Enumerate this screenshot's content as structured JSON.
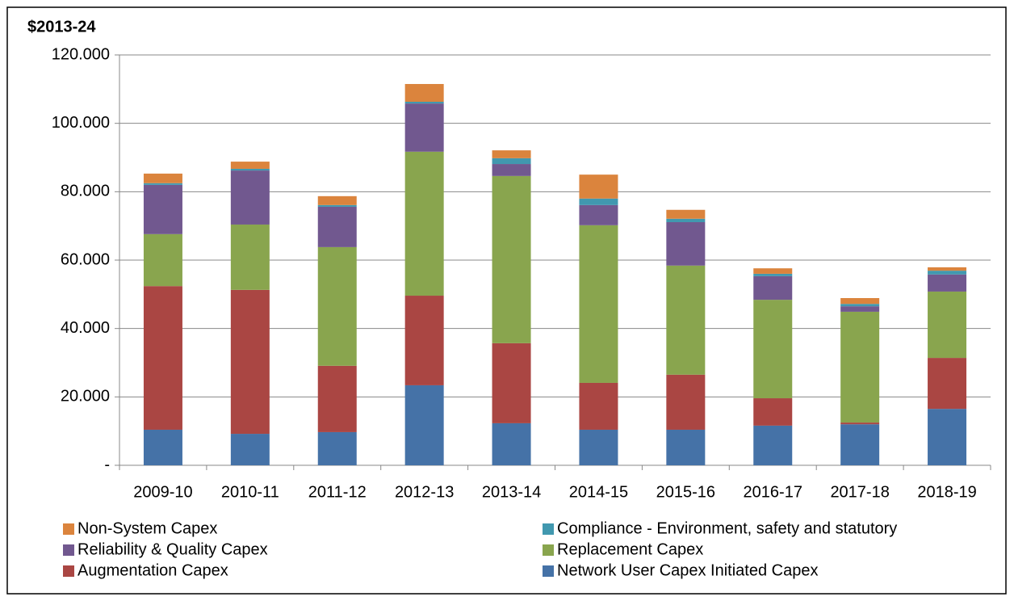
{
  "chart_data": {
    "type": "stacked_bar",
    "y_label": "$2013-24",
    "categories": [
      "2009-10",
      "2010-11",
      "2011-12",
      "2012-13",
      "2013-14",
      "2014-15",
      "2015-16",
      "2016-17",
      "2017-18",
      "2018-19"
    ],
    "series": [
      {
        "name": "Network User Capex Initiated Capex",
        "color": "#4572a7",
        "values": [
          10.4,
          9.2,
          9.7,
          23.4,
          12.3,
          10.4,
          10.4,
          11.6,
          12.0,
          16.5
        ]
      },
      {
        "name": "Augmentation Capex",
        "color": "#aa4643",
        "values": [
          42.0,
          42.1,
          19.4,
          26.2,
          23.4,
          13.7,
          16.1,
          8.0,
          0.5,
          14.9
        ]
      },
      {
        "name": "Replacement Capex",
        "color": "#89a54e",
        "values": [
          15.2,
          19.1,
          34.7,
          42.1,
          48.9,
          46.1,
          31.9,
          28.8,
          32.4,
          19.4
        ]
      },
      {
        "name": "Reliability & Quality Capex",
        "color": "#71588f",
        "values": [
          14.4,
          15.8,
          11.8,
          14.1,
          3.5,
          5.9,
          12.7,
          6.9,
          1.6,
          5.0
        ]
      },
      {
        "name": "Compliance - Environment, safety and statutory",
        "color": "#4198af",
        "values": [
          0.5,
          0.5,
          0.5,
          0.5,
          1.7,
          1.9,
          1.0,
          0.7,
          0.7,
          1.1
        ]
      },
      {
        "name": "Non-System Capex",
        "color": "#db843d",
        "values": [
          2.8,
          2.1,
          2.6,
          5.2,
          2.3,
          7.0,
          2.6,
          1.6,
          1.7,
          1.0
        ]
      }
    ],
    "ylim": [
      0,
      120
    ],
    "yticks": [
      {
        "value": 0,
        "label": "-"
      },
      {
        "value": 20,
        "label": "20.000"
      },
      {
        "value": 40,
        "label": "40.000"
      },
      {
        "value": 60,
        "label": "60.000"
      },
      {
        "value": 80,
        "label": "80.000"
      },
      {
        "value": 100,
        "label": "100.000"
      },
      {
        "value": 120,
        "label": "120.000"
      }
    ],
    "grid": true
  }
}
